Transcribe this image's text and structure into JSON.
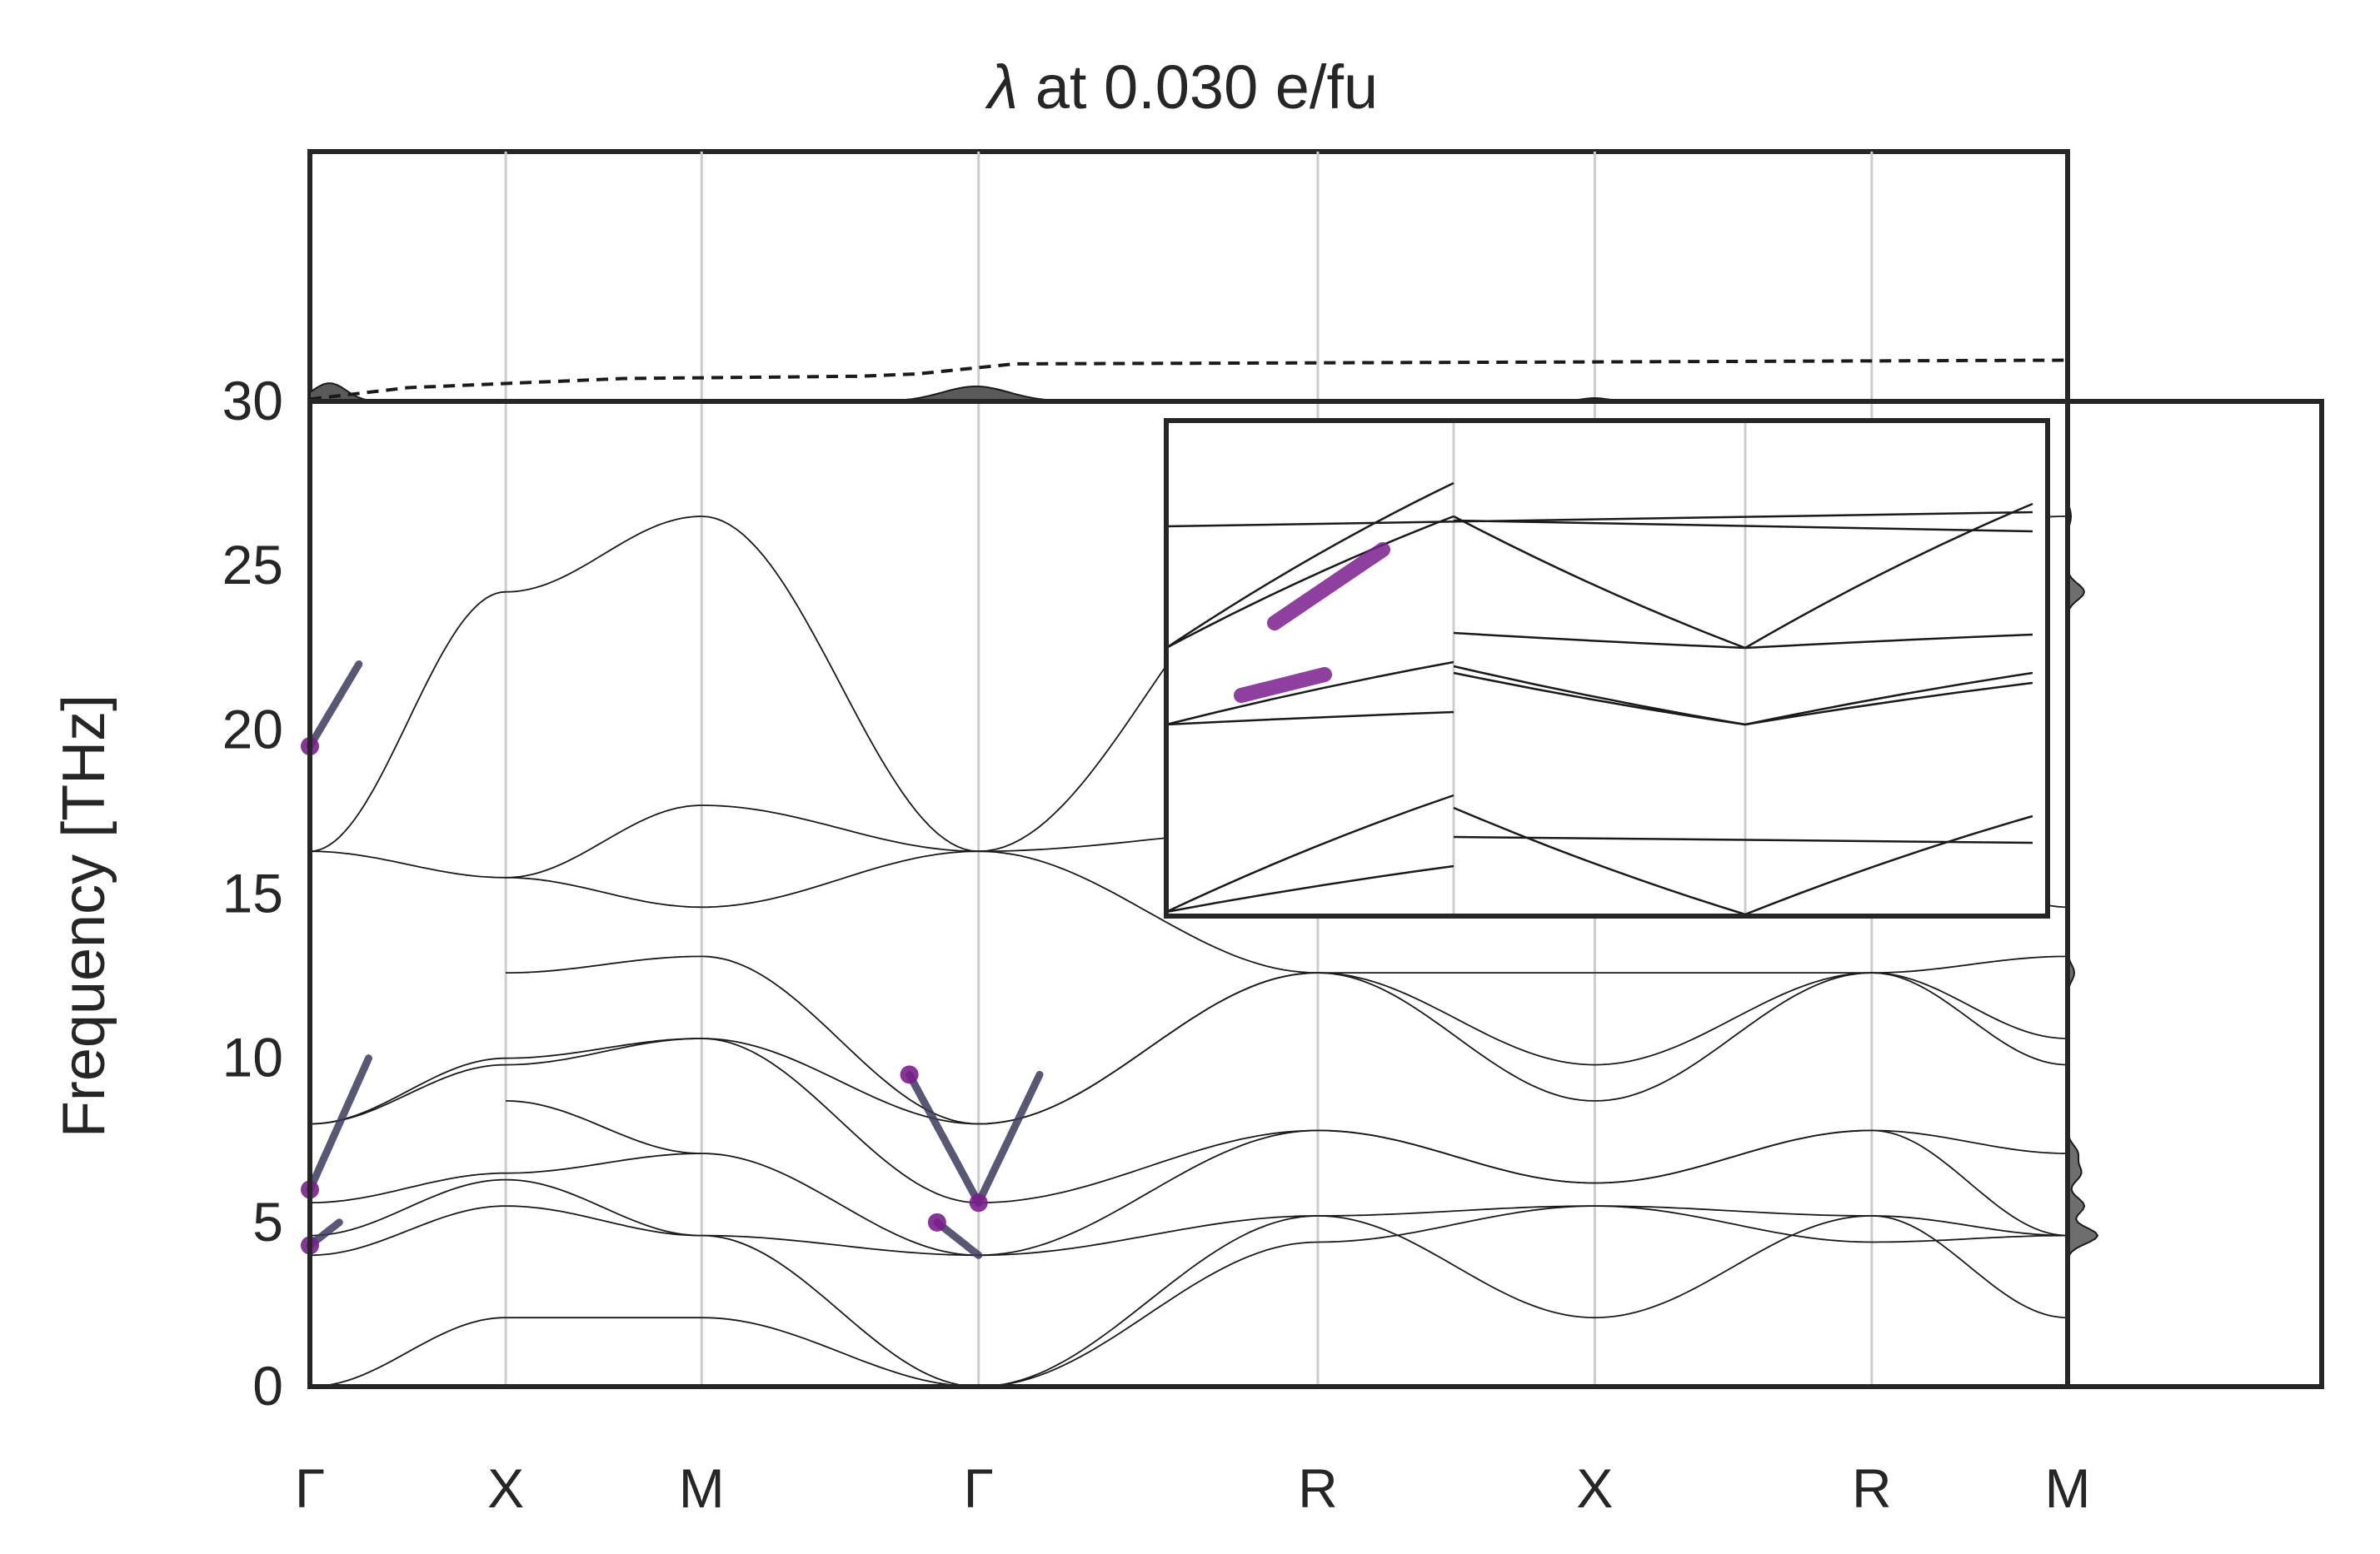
{
  "chart_data": {
    "type": "line",
    "title_symbol": "λ",
    "title_rest": " at 0.030 e/fu",
    "ylabel": "Frequency [THz]",
    "ylim": [
      0,
      30
    ],
    "yticks": [
      0,
      5,
      10,
      15,
      20,
      25,
      30
    ],
    "path": [
      {
        "label": "Γ",
        "pos": 0.0
      },
      {
        "label": "X",
        "pos": 0.5
      },
      {
        "label": "M",
        "pos": 1.0
      },
      {
        "label": "Γ",
        "pos": 1.707
      },
      {
        "label": "R",
        "pos": 2.573
      },
      {
        "label": "X",
        "pos": 3.28
      },
      {
        "label": "R",
        "pos": 3.987
      },
      {
        "label": "M",
        "pos": 4.487
      }
    ],
    "grid": true,
    "colors": {
      "band": "#1a1a1a",
      "coupling_low": "#3b3b5c",
      "coupling_high": "#7a1f8c",
      "dos_fill": "#6e6e6e",
      "frame": "#262626",
      "grid": "#cccccc"
    },
    "segments": [
      {
        "name": "Γ-X",
        "bands": [
          [
            0,
            2.1
          ],
          [
            4.0,
            5.5
          ],
          [
            4.6,
            6.3
          ],
          [
            5.6,
            6.5
          ],
          [
            8.0,
            9.8
          ],
          [
            8.0,
            10.0
          ],
          [
            16.3,
            15.5
          ],
          [
            16.3,
            24.2
          ]
        ]
      },
      {
        "name": "X-M",
        "bands": [
          [
            2.1,
            2.1
          ],
          [
            5.5,
            4.6
          ],
          [
            6.3,
            4.6
          ],
          [
            6.5,
            7.1
          ],
          [
            9.8,
            10.6
          ],
          [
            10.0,
            10.6
          ],
          [
            15.5,
            14.6
          ],
          [
            24.2,
            26.5
          ],
          [
            12.6,
            13.1
          ],
          [
            8.7,
            7.1
          ],
          [
            15.5,
            17.7
          ]
        ]
      },
      {
        "name": "M-Γ",
        "bands": [
          [
            2.1,
            0
          ],
          [
            4.6,
            0
          ],
          [
            4.6,
            4.0
          ],
          [
            7.1,
            4.0
          ],
          [
            10.6,
            5.6
          ],
          [
            10.6,
            8.0
          ],
          [
            14.6,
            16.3
          ],
          [
            26.5,
            16.3
          ],
          [
            13.1,
            8.0
          ],
          [
            17.7,
            16.3
          ]
        ]
      },
      {
        "name": "Γ-R",
        "bands": [
          [
            0,
            5.2
          ],
          [
            0,
            4.4
          ],
          [
            4.0,
            5.2
          ],
          [
            4.0,
            7.8
          ],
          [
            5.6,
            7.8
          ],
          [
            8.0,
            12.6
          ],
          [
            8.0,
            12.6
          ],
          [
            16.3,
            17.0
          ],
          [
            16.3,
            26.0
          ],
          [
            16.3,
            12.6
          ]
        ]
      },
      {
        "name": "R-X",
        "bands": [
          [
            5.2,
            2.1
          ],
          [
            4.4,
            5.5
          ],
          [
            5.2,
            5.5
          ],
          [
            7.8,
            6.2
          ],
          [
            7.8,
            6.2
          ],
          [
            12.6,
            8.7
          ],
          [
            12.6,
            12.6
          ],
          [
            17.0,
            17.0
          ],
          [
            26.0,
            26.0
          ],
          [
            12.6,
            9.8
          ]
        ]
      },
      {
        "name": "X-R",
        "bands": [
          [
            2.1,
            5.2
          ],
          [
            5.5,
            4.4
          ],
          [
            5.5,
            5.2
          ],
          [
            6.2,
            7.8
          ],
          [
            6.2,
            7.8
          ],
          [
            8.7,
            12.6
          ],
          [
            12.6,
            12.6
          ],
          [
            17.0,
            17.0
          ],
          [
            26.0,
            26.0
          ],
          [
            9.8,
            12.6
          ]
        ]
      },
      {
        "name": "R-M",
        "bands": [
          [
            5.2,
            2.1
          ],
          [
            4.4,
            4.6
          ],
          [
            5.2,
            4.6
          ],
          [
            7.8,
            4.6
          ],
          [
            7.8,
            7.1
          ],
          [
            12.6,
            10.6
          ],
          [
            12.6,
            13.1
          ],
          [
            17.0,
            14.6
          ],
          [
            26.0,
            26.5
          ],
          [
            12.6,
            9.8
          ]
        ]
      }
    ],
    "coupling_highlights": [
      {
        "segment": "Γ-X",
        "from": 0.0,
        "to": 0.25,
        "band_start": 16.3,
        "band_end": 24.2,
        "f_from": 19.5,
        "f_to": 22.0
      },
      {
        "segment": "Γ-X",
        "from": 0.0,
        "to": 0.3,
        "band_start": 5.6,
        "band_end": 12.6,
        "f_from": 6.0,
        "f_to": 10.0
      },
      {
        "segment": "Γ-X",
        "from": 0.0,
        "to": 0.15,
        "band_start": 4.0,
        "band_end": 5.5,
        "f_from": 4.3,
        "f_to": 5.0
      },
      {
        "segment": "M-Γ",
        "from": 0.75,
        "to": 1.0,
        "band_start": 10.6,
        "band_end": 5.6,
        "f_from": 9.5,
        "f_to": 5.6
      },
      {
        "segment": "Γ-R",
        "from": 0.0,
        "to": 0.18,
        "band_start": 5.6,
        "band_end": 8.0,
        "f_from": 5.6,
        "f_to": 9.5
      },
      {
        "segment": "M-Γ",
        "from": 0.85,
        "to": 1.0,
        "band_start": 5.0,
        "band_end": 4.0,
        "f_from": 5.0,
        "f_to": 4.0
      }
    ],
    "dos": {
      "label_axis": "frequency",
      "peaks": [
        [
          4.6,
          0.9
        ],
        [
          5.5,
          0.5
        ],
        [
          6.5,
          0.4
        ],
        [
          7.1,
          0.3
        ],
        [
          24.2,
          0.5
        ],
        [
          12.6,
          0.2
        ],
        [
          26.5,
          0.1
        ]
      ]
    },
    "lambda_cumulative": {
      "points": [
        [
          0,
          0.05
        ],
        [
          0.25,
          0.3
        ],
        [
          0.8,
          0.5
        ],
        [
          1.4,
          0.55
        ],
        [
          1.55,
          0.6
        ],
        [
          1.8,
          0.82
        ],
        [
          3.2,
          0.86
        ],
        [
          4.487,
          0.9
        ]
      ]
    },
    "inset": {
      "grid": true,
      "note": "zoomed view of Γ-X-M region"
    }
  }
}
